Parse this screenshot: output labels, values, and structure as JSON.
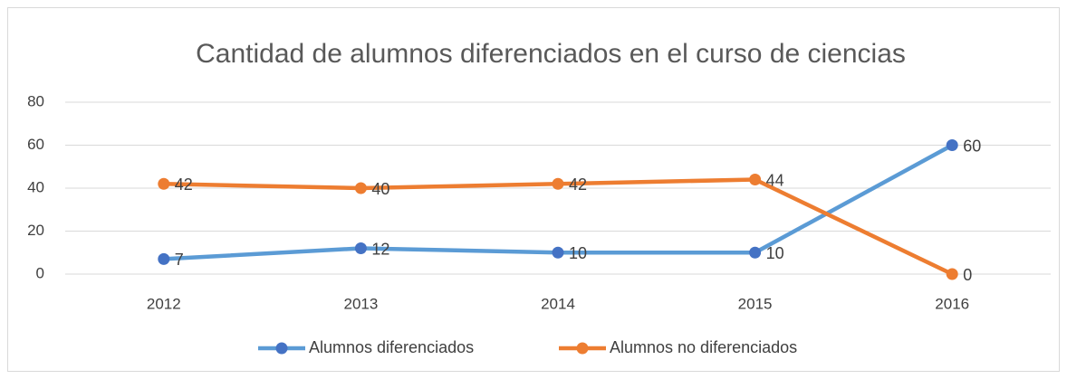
{
  "chart_data": {
    "type": "line",
    "title": "Cantidad de alumnos diferenciados en el curso de ciencias",
    "categories": [
      "2012",
      "2013",
      "2014",
      "2015",
      "2016"
    ],
    "series": [
      {
        "name": "Alumnos diferenciados",
        "color": "#5b9bd5",
        "marker_color": "#4472c4",
        "values": [
          7,
          12,
          10,
          10,
          60
        ]
      },
      {
        "name": "Alumnos no diferenciados",
        "color": "#ed7d31",
        "marker_color": "#ed7d31",
        "values": [
          42,
          40,
          42,
          44,
          0
        ]
      }
    ],
    "ylim": [
      0,
      80
    ],
    "yticks": [
      0,
      20,
      40,
      60,
      80
    ],
    "grid": true,
    "legend": "bottom"
  }
}
